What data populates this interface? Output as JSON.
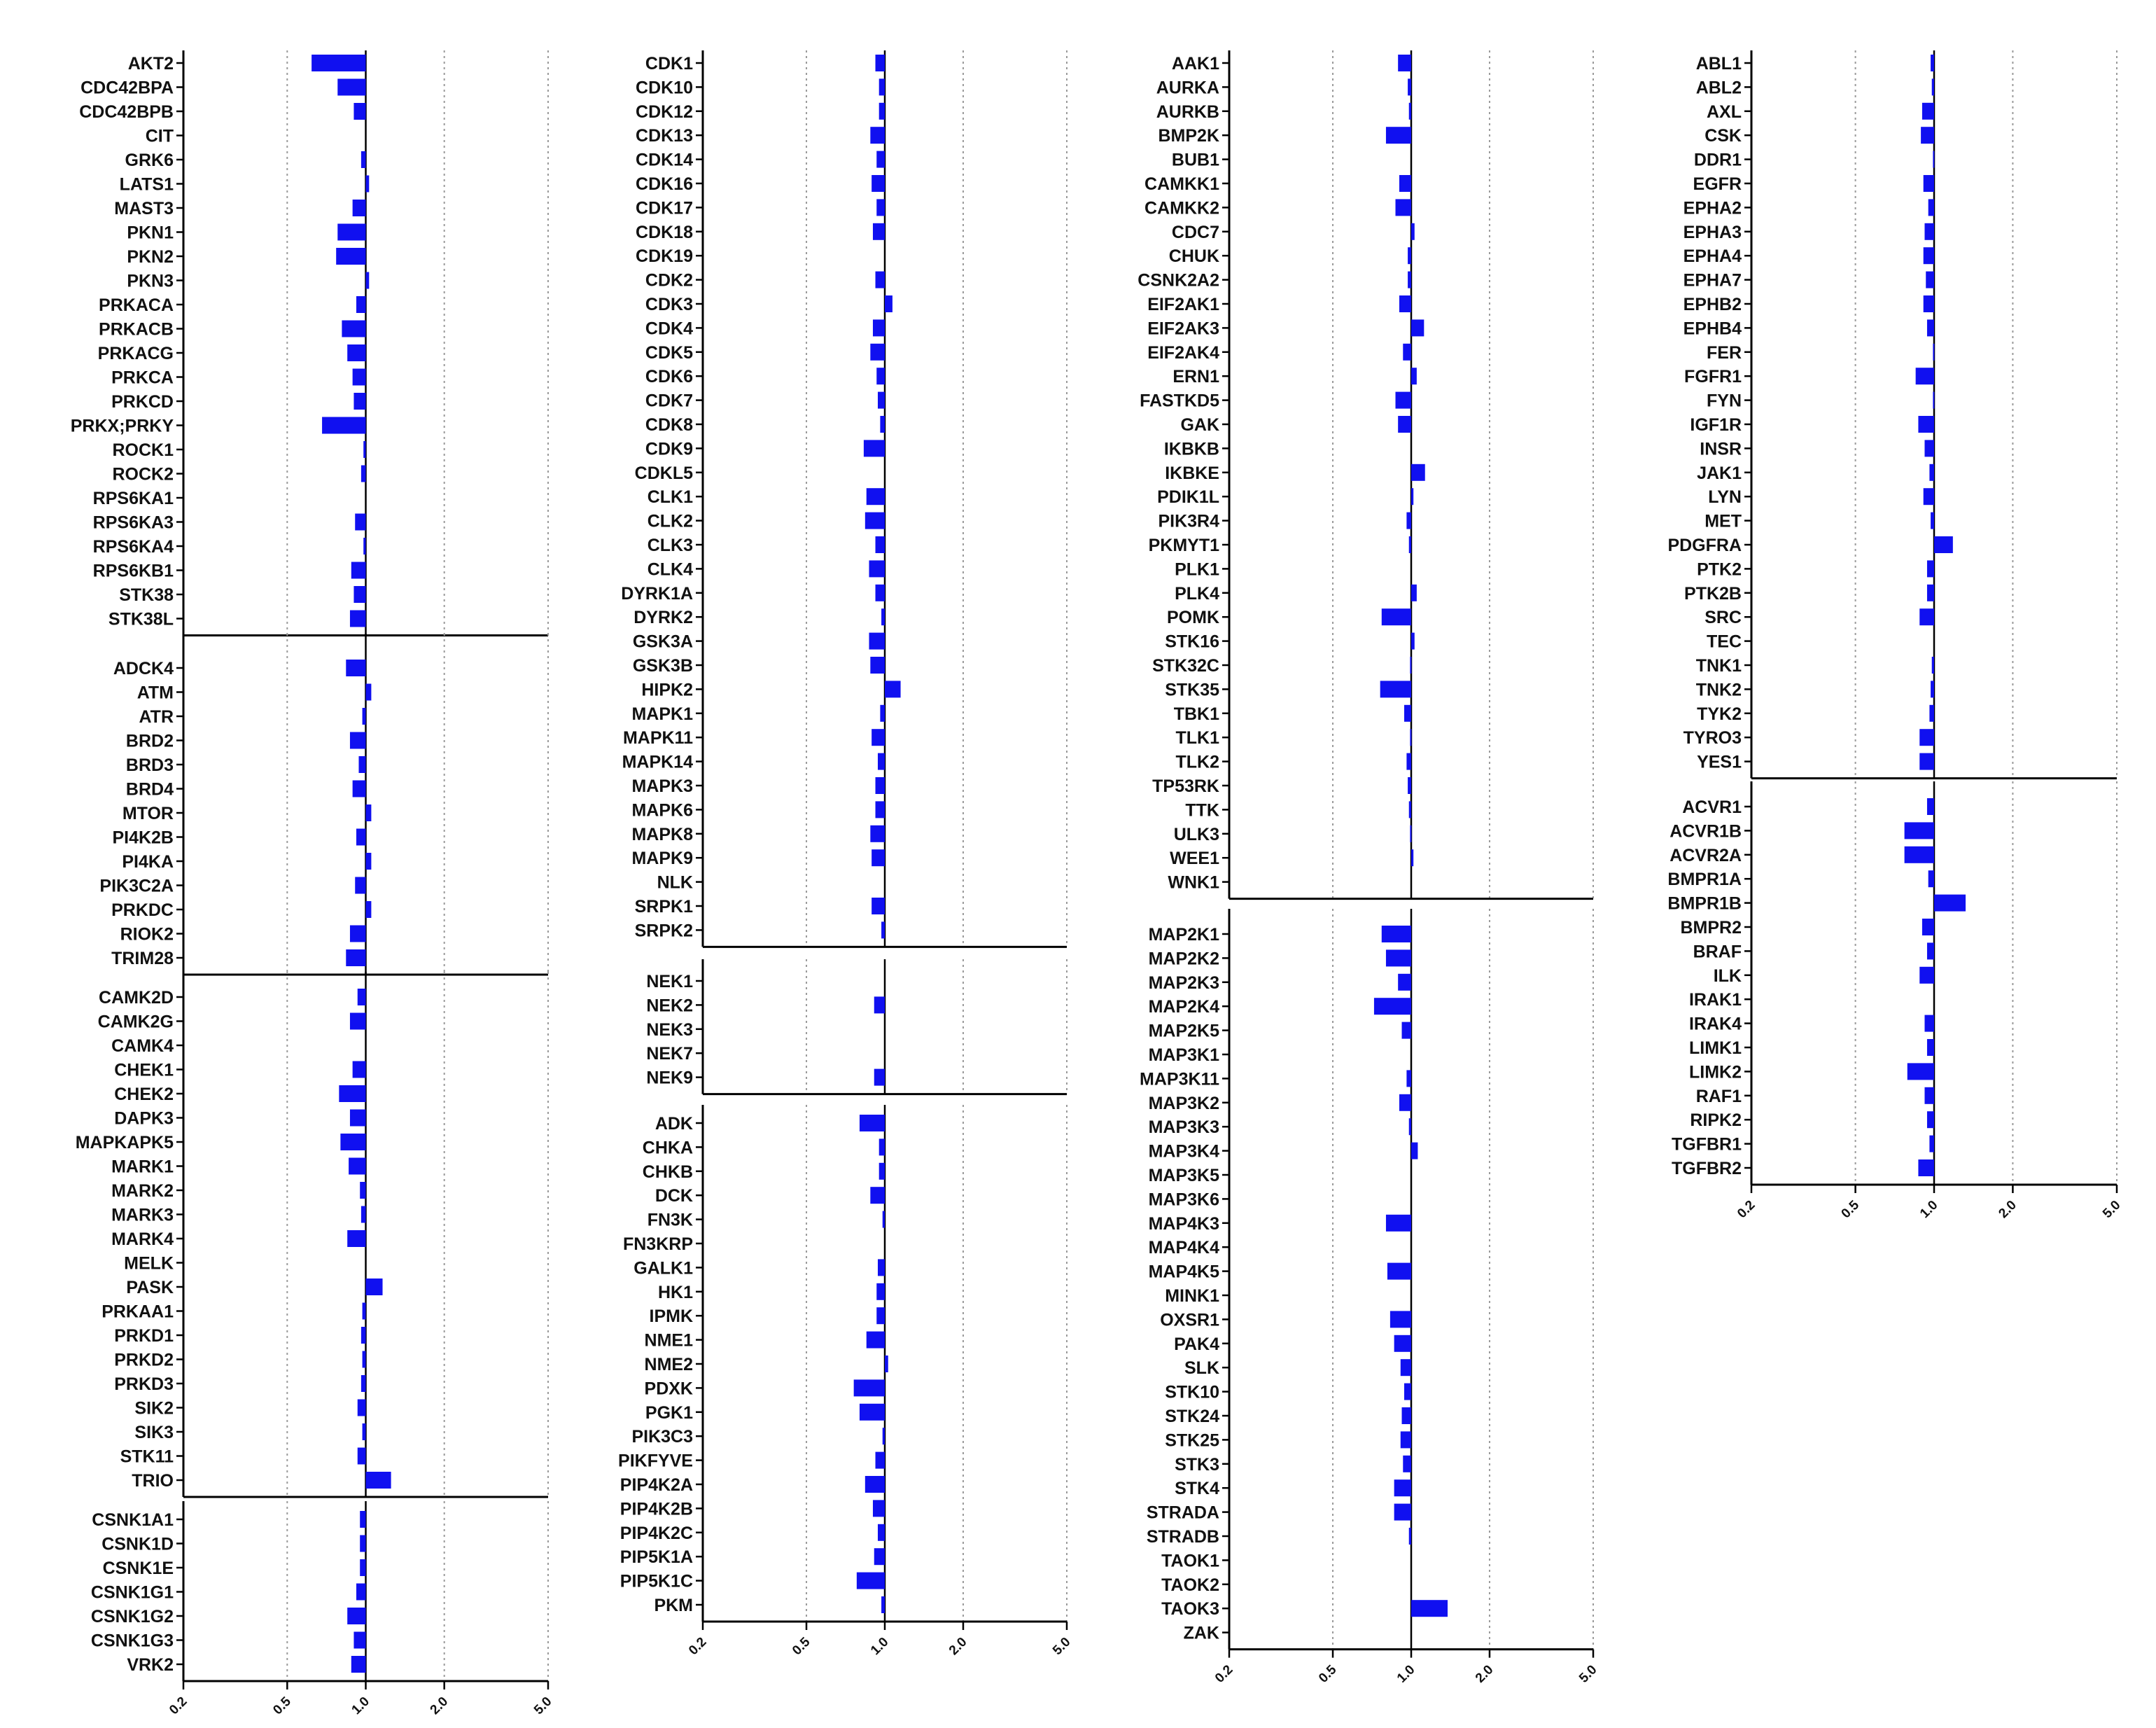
{
  "chart_data": {
    "type": "bar",
    "orientation": "horizontal",
    "x_scale": "log",
    "xlim": [
      0.2,
      5.0
    ],
    "x_ticks": [
      "0.2",
      "0.5",
      "1.0",
      "2.0",
      "5.0"
    ],
    "reference_line": 1.0,
    "grid": "vertical dotted",
    "bar_color": "#1010f0",
    "columns": [
      {
        "panels": [
          {
            "categories": [
              "AKT2",
              "CDC42BPA",
              "CDC42BPB",
              "CIT",
              "GRK6",
              "LATS1",
              "MAST3",
              "PKN1",
              "PKN2",
              "PKN3",
              "PRKACA",
              "PRKACB",
              "PRKACG",
              "PRKCA",
              "PRKCD",
              "PRKX;PRKY",
              "ROCK1",
              "ROCK2",
              "RPS6KA1",
              "RPS6KA3",
              "RPS6KA4",
              "RPS6KB1",
              "STK38",
              "STK38L"
            ],
            "values": [
              0.62,
              0.78,
              0.9,
              1.0,
              0.96,
              1.03,
              0.89,
              0.78,
              0.77,
              1.03,
              0.92,
              0.81,
              0.85,
              0.89,
              0.9,
              0.68,
              0.98,
              0.96,
              1.0,
              0.91,
              0.98,
              0.88,
              0.9,
              0.87
            ]
          },
          {
            "categories": [
              "ADCK4",
              "ATM",
              "ATR",
              "BRD2",
              "BRD3",
              "BRD4",
              "MTOR",
              "PI4K2B",
              "PI4KA",
              "PIK3C2A",
              "PRKDC",
              "RIOK2",
              "TRIM28"
            ],
            "values": [
              0.84,
              1.05,
              0.97,
              0.87,
              0.94,
              0.89,
              1.05,
              0.92,
              1.05,
              0.91,
              1.05,
              0.87,
              0.84
            ]
          },
          {
            "categories": [
              "CAMK2D",
              "CAMK2G",
              "CAMK4",
              "CHEK1",
              "CHEK2",
              "DAPK3",
              "MAPKAPK5",
              "MARK1",
              "MARK2",
              "MARK3",
              "MARK4",
              "MELK",
              "PASK",
              "PRKAA1",
              "PRKD1",
              "PRKD2",
              "PRKD3",
              "SIK2",
              "SIK3",
              "STK11",
              "TRIO"
            ],
            "values": [
              0.93,
              0.87,
              1.0,
              0.89,
              0.79,
              0.87,
              0.8,
              0.86,
              0.95,
              0.96,
              0.85,
              1.0,
              1.16,
              0.97,
              0.96,
              0.97,
              0.96,
              0.93,
              0.97,
              0.93,
              1.25
            ]
          },
          {
            "categories": [
              "CSNK1A1",
              "CSNK1D",
              "CSNK1E",
              "CSNK1G1",
              "CSNK1G2",
              "CSNK1G3",
              "VRK2"
            ],
            "values": [
              0.95,
              0.95,
              0.95,
              0.92,
              0.85,
              0.9,
              0.88
            ]
          }
        ]
      },
      {
        "panels": [
          {
            "categories": [
              "CDK1",
              "CDK10",
              "CDK12",
              "CDK13",
              "CDK14",
              "CDK16",
              "CDK17",
              "CDK18",
              "CDK19",
              "CDK2",
              "CDK3",
              "CDK4",
              "CDK5",
              "CDK6",
              "CDK7",
              "CDK8",
              "CDK9",
              "CDKL5",
              "CLK1",
              "CLK2",
              "CLK3",
              "CLK4",
              "DYRK1A",
              "DYRK2",
              "GSK3A",
              "GSK3B",
              "HIPK2",
              "MAPK1",
              "MAPK11",
              "MAPK14",
              "MAPK3",
              "MAPK6",
              "MAPK8",
              "MAPK9",
              "NLK",
              "SRPK1",
              "SRPK2"
            ],
            "values": [
              0.92,
              0.95,
              0.95,
              0.88,
              0.93,
              0.89,
              0.93,
              0.9,
              1.0,
              0.92,
              1.07,
              0.9,
              0.88,
              0.93,
              0.94,
              0.96,
              0.83,
              1.0,
              0.85,
              0.84,
              0.92,
              0.87,
              0.92,
              0.97,
              0.87,
              0.88,
              1.15,
              0.96,
              0.89,
              0.94,
              0.92,
              0.92,
              0.88,
              0.89,
              1.0,
              0.89,
              0.97
            ]
          },
          {
            "categories": [
              "NEK1",
              "NEK2",
              "NEK3",
              "NEK7",
              "NEK9"
            ],
            "values": [
              1.0,
              0.91,
              1.0,
              1.0,
              0.91
            ]
          },
          {
            "categories": [
              "ADK",
              "CHKA",
              "CHKB",
              "DCK",
              "FN3K",
              "FN3KRP",
              "GALK1",
              "HK1",
              "IPMK",
              "NME1",
              "NME2",
              "PDXK",
              "PGK1",
              "PIK3C3",
              "PIKFYVE",
              "PIP4K2A",
              "PIP4K2B",
              "PIP4K2C",
              "PIP5K1A",
              "PIP5K1C",
              "PKM"
            ],
            "values": [
              0.8,
              0.95,
              0.95,
              0.88,
              0.98,
              1.0,
              0.94,
              0.93,
              0.93,
              0.85,
              1.03,
              0.76,
              0.8,
              0.98,
              0.92,
              0.84,
              0.9,
              0.94,
              0.91,
              0.78,
              0.97
            ]
          }
        ]
      },
      {
        "panels": [
          {
            "categories": [
              "AAK1",
              "AURKA",
              "AURKB",
              "BMP2K",
              "BUB1",
              "CAMKK1",
              "CAMKK2",
              "CDC7",
              "CHUK",
              "CSNK2A2",
              "EIF2AK1",
              "EIF2AK3",
              "EIF2AK4",
              "ERN1",
              "FASTKD5",
              "GAK",
              "IKBKB",
              "IKBKE",
              "PDIK1L",
              "PIK3R4",
              "PKMYT1",
              "PLK1",
              "PLK4",
              "POMK",
              "STK16",
              "STK32C",
              "STK35",
              "TBK1",
              "TLK1",
              "TLK2",
              "TP53RK",
              "TTK",
              "ULK3",
              "WEE1",
              "WNK1"
            ],
            "values": [
              0.89,
              0.97,
              0.98,
              0.8,
              1.0,
              0.9,
              0.87,
              1.03,
              0.97,
              0.97,
              0.9,
              1.12,
              0.93,
              1.05,
              0.87,
              0.89,
              1.0,
              1.13,
              1.02,
              0.96,
              0.98,
              1.0,
              1.05,
              0.77,
              1.03,
              0.99,
              0.76,
              0.94,
              0.99,
              0.96,
              0.97,
              0.98,
              0.99,
              1.02,
              1.0
            ]
          },
          {
            "categories": [
              "MAP2K1",
              "MAP2K2",
              "MAP2K3",
              "MAP2K4",
              "MAP2K5",
              "MAP3K1",
              "MAP3K11",
              "MAP3K2",
              "MAP3K3",
              "MAP3K4",
              "MAP3K5",
              "MAP3K6",
              "MAP4K3",
              "MAP4K4",
              "MAP4K5",
              "MINK1",
              "OXSR1",
              "PAK4",
              "SLK",
              "STK10",
              "STK24",
              "STK25",
              "STK3",
              "STK4",
              "STRADA",
              "STRADB",
              "TAOK1",
              "TAOK2",
              "TAOK3",
              "ZAK"
            ],
            "values": [
              0.77,
              0.8,
              0.89,
              0.72,
              0.92,
              1.0,
              0.96,
              0.9,
              0.98,
              1.06,
              1.0,
              1.0,
              0.8,
              1.0,
              0.81,
              1.0,
              0.83,
              0.86,
              0.91,
              0.94,
              0.92,
              0.91,
              0.93,
              0.86,
              0.86,
              0.98,
              1.0,
              1.0,
              1.38,
              1.0
            ]
          }
        ]
      },
      {
        "panels": [
          {
            "categories": [
              "ABL1",
              "ABL2",
              "AXL",
              "CSK",
              "DDR1",
              "EGFR",
              "EPHA2",
              "EPHA3",
              "EPHA4",
              "EPHA7",
              "EPHB2",
              "EPHB4",
              "FER",
              "FGFR1",
              "FYN",
              "IGF1R",
              "INSR",
              "JAK1",
              "LYN",
              "MET",
              "PDGFRA",
              "PTK2",
              "PTK2B",
              "SRC",
              "TEC",
              "TNK1",
              "TNK2",
              "TYK2",
              "TYRO3",
              "YES1"
            ],
            "values": [
              0.97,
              0.98,
              0.9,
              0.89,
              0.99,
              0.91,
              0.95,
              0.92,
              0.91,
              0.93,
              0.91,
              0.94,
              0.99,
              0.85,
              0.99,
              0.87,
              0.92,
              0.96,
              0.91,
              0.97,
              1.18,
              0.94,
              0.94,
              0.88,
              1.0,
              0.98,
              0.97,
              0.96,
              0.88,
              0.88
            ]
          },
          {
            "categories": [
              "ACVR1",
              "ACVR1B",
              "ACVR2A",
              "BMPR1A",
              "BMPR1B",
              "BMPR2",
              "BRAF",
              "ILK",
              "IRAK1",
              "IRAK4",
              "LIMK1",
              "LIMK2",
              "RAF1",
              "RIPK2",
              "TGFBR1",
              "TGFBR2"
            ],
            "values": [
              0.94,
              0.77,
              0.77,
              0.95,
              1.32,
              0.9,
              0.94,
              0.88,
              1.0,
              0.92,
              0.94,
              0.79,
              0.92,
              0.94,
              0.96,
              0.87
            ]
          }
        ]
      }
    ]
  }
}
